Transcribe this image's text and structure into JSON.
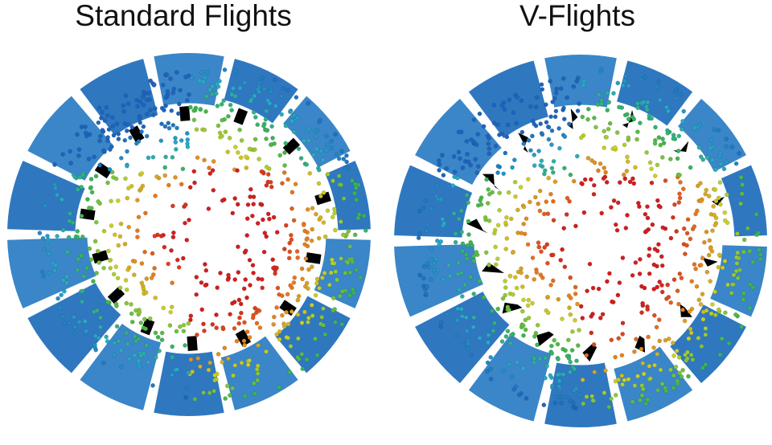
{
  "panels": [
    {
      "title": "Standard Flights"
    },
    {
      "title": "V-Flights"
    }
  ]
}
